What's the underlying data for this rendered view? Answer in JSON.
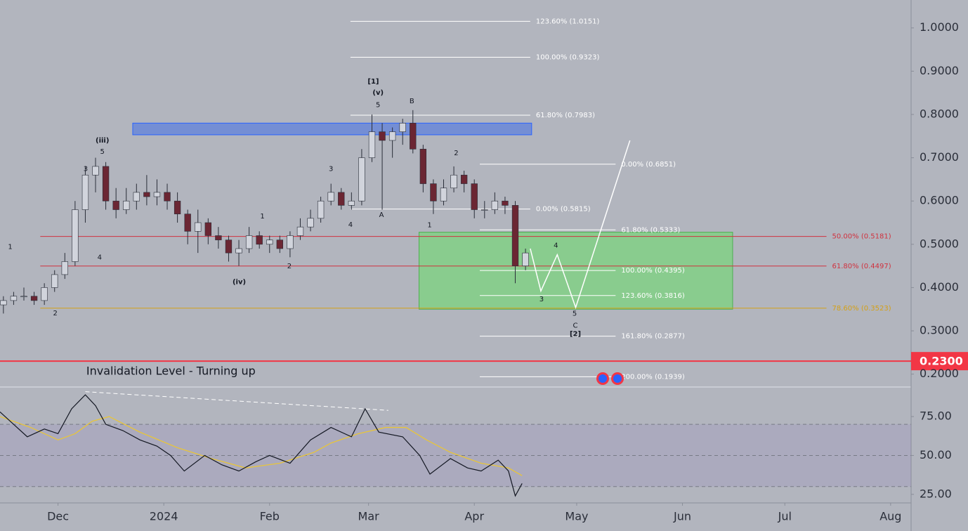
{
  "chart_data": {
    "type": "candlestick",
    "x": [
      -16,
      -13,
      -10,
      -7,
      -4,
      -1,
      2,
      5,
      8,
      11,
      14,
      17,
      20,
      23,
      26,
      29,
      32,
      35,
      38,
      41,
      44,
      47,
      50,
      53,
      56,
      59,
      62,
      65,
      68,
      71,
      74,
      77,
      80,
      83,
      86,
      89,
      92,
      95,
      98,
      101,
      104,
      107,
      110,
      113,
      116,
      119,
      122,
      125,
      128,
      131,
      134,
      137
    ],
    "open": [
      0.36,
      0.37,
      0.38,
      0.38,
      0.37,
      0.4,
      0.43,
      0.46,
      0.58,
      0.66,
      0.68,
      0.6,
      0.58,
      0.6,
      0.62,
      0.61,
      0.62,
      0.6,
      0.57,
      0.53,
      0.55,
      0.52,
      0.51,
      0.48,
      0.49,
      0.52,
      0.5,
      0.51,
      0.49,
      0.52,
      0.54,
      0.56,
      0.6,
      0.62,
      0.59,
      0.6,
      0.7,
      0.76,
      0.74,
      0.76,
      0.78,
      0.72,
      0.64,
      0.6,
      0.63,
      0.66,
      0.64,
      0.58,
      0.58,
      0.6,
      0.59,
      0.45
    ],
    "high": [
      0.38,
      0.39,
      0.4,
      0.39,
      0.41,
      0.44,
      0.48,
      0.6,
      0.68,
      0.7,
      0.69,
      0.63,
      0.63,
      0.64,
      0.66,
      0.65,
      0.64,
      0.62,
      0.58,
      0.58,
      0.56,
      0.54,
      0.52,
      0.51,
      0.54,
      0.53,
      0.52,
      0.52,
      0.53,
      0.56,
      0.58,
      0.61,
      0.64,
      0.63,
      0.62,
      0.72,
      0.8,
      0.78,
      0.77,
      0.79,
      0.81,
      0.73,
      0.65,
      0.65,
      0.68,
      0.67,
      0.65,
      0.6,
      0.62,
      0.61,
      0.6,
      0.49
    ],
    "low": [
      0.34,
      0.36,
      0.37,
      0.36,
      0.36,
      0.39,
      0.42,
      0.45,
      0.55,
      0.62,
      0.58,
      0.56,
      0.57,
      0.58,
      0.59,
      0.59,
      0.58,
      0.55,
      0.5,
      0.48,
      0.5,
      0.49,
      0.46,
      0.45,
      0.48,
      0.49,
      0.48,
      0.48,
      0.47,
      0.51,
      0.53,
      0.55,
      0.59,
      0.58,
      0.58,
      0.59,
      0.69,
      0.58,
      0.7,
      0.73,
      0.71,
      0.62,
      0.57,
      0.59,
      0.62,
      0.62,
      0.56,
      0.56,
      0.57,
      0.57,
      0.41,
      0.44
    ],
    "close": [
      0.37,
      0.38,
      0.38,
      0.37,
      0.4,
      0.43,
      0.46,
      0.58,
      0.66,
      0.68,
      0.6,
      0.58,
      0.6,
      0.62,
      0.61,
      0.62,
      0.6,
      0.57,
      0.53,
      0.55,
      0.52,
      0.51,
      0.48,
      0.49,
      0.52,
      0.5,
      0.51,
      0.49,
      0.52,
      0.54,
      0.56,
      0.6,
      0.62,
      0.59,
      0.6,
      0.7,
      0.76,
      0.74,
      0.76,
      0.78,
      0.72,
      0.64,
      0.6,
      0.63,
      0.66,
      0.64,
      0.58,
      0.58,
      0.6,
      0.59,
      0.45,
      0.48
    ],
    "up_color": "#d1d4dc",
    "down_color": "#6b2633",
    "ylim": [
      0.1702,
      1.0645
    ],
    "yticks": [
      {
        "value": 1,
        "label": "1.0000"
      },
      {
        "value": 0.9,
        "label": "0.9000"
      },
      {
        "value": 0.8,
        "label": "0.8000"
      },
      {
        "value": 0.7,
        "label": "0.7000"
      },
      {
        "value": 0.6,
        "label": "0.6000"
      },
      {
        "value": 0.5,
        "label": "0.5000"
      },
      {
        "value": 0.4,
        "label": "0.4000"
      },
      {
        "value": 0.3,
        "label": "0.3000"
      },
      {
        "value": 0.2,
        "label": "0.2000"
      }
    ],
    "xlim": [
      -17,
      250
    ],
    "xticks": [
      {
        "value": 0,
        "label": "Dec"
      },
      {
        "value": 31,
        "label": "2024"
      },
      {
        "value": 62,
        "label": "Feb"
      },
      {
        "value": 91,
        "label": "Mar"
      },
      {
        "value": 122,
        "label": "Apr"
      },
      {
        "value": 152,
        "label": "May"
      },
      {
        "value": 183,
        "label": "Jun"
      },
      {
        "value": 213,
        "label": "Jul"
      },
      {
        "value": 244,
        "label": "Aug"
      }
    ],
    "invalidation": {
      "value": 0.23,
      "label": "0.2300",
      "text": "Invalidation Level - Turning up",
      "color": "#f23645"
    },
    "zones": [
      {
        "y": [
          0.753,
          0.78
        ],
        "x": [
          21.9,
          138.8
        ],
        "color": "rgba(66,110,230,0.55)",
        "edge": "#2962ff"
      },
      {
        "y": [
          0.35,
          0.5279
        ],
        "x": [
          105.8,
          197.7
        ],
        "color": "rgba(110,220,110,0.6)",
        "edge": "#4caf50"
      }
    ],
    "levels": [
      {
        "value": 1.0151,
        "label": "123.60% (1.0151)",
        "x": [
          85.7,
          138.4
        ],
        "color": "#ffffff"
      },
      {
        "value": 0.9323,
        "label": "100.00% (0.9323)",
        "x": [
          85.7,
          138.4
        ],
        "color": "#ffffff"
      },
      {
        "value": 0.7983,
        "label": "61.80% (0.7983)",
        "x": [
          85.7,
          138.4
        ],
        "color": "#ffffff"
      },
      {
        "value": 0.5815,
        "label": "0.00% (0.5815)",
        "x": [
          85.7,
          138.4
        ],
        "color": "#ffffff"
      },
      {
        "value": 0.6851,
        "label": "0.00% (0.6851)",
        "x": [
          123.6,
          163.4
        ],
        "color": "#ffffff"
      },
      {
        "value": 0.5333,
        "label": "61.80% (0.5333)",
        "x": [
          123.6,
          163.4
        ],
        "color": "#ffffff"
      },
      {
        "value": 0.4395,
        "label": "100.00% (0.4395)",
        "x": [
          123.6,
          163.4
        ],
        "color": "#ffffff"
      },
      {
        "value": 0.3816,
        "label": "123.60% (0.3816)",
        "x": [
          123.6,
          163.4
        ],
        "color": "#ffffff"
      },
      {
        "value": 0.2877,
        "label": "161.80% (0.2877)",
        "x": [
          123.6,
          163.4
        ],
        "color": "#ffffff"
      },
      {
        "value": 0.1939,
        "label": "200.00% (0.1939)",
        "x": [
          123.6,
          163.4
        ],
        "color": "#ffffff"
      },
      {
        "value": 0.5181,
        "label": "50.00% (0.5181)",
        "x": [
          -5.2,
          225.2
        ],
        "color": "#d0323f"
      },
      {
        "value": 0.4497,
        "label": "61.80% (0.4497)",
        "x": [
          -5.2,
          225.2
        ],
        "color": "#d0323f"
      },
      {
        "value": 0.3523,
        "label": "78.60% (0.3523)",
        "x": [
          -5.2,
          225.2
        ],
        "color": "#d4a017"
      }
    ],
    "projection": {
      "x": [
        138.4,
        141.5,
        146.3,
        151.7,
        167.6
      ],
      "y": [
        0.49,
        0.392,
        0.476,
        0.354,
        0.74
      ],
      "color": "#ffffff"
    },
    "waves": [
      {
        "text": "1",
        "x": -14,
        "y": 0.494
      },
      {
        "text": "2",
        "x": -0.8,
        "y": 0.341
      },
      {
        "text": "3",
        "x": 8.1,
        "y": 0.674
      },
      {
        "text": "5",
        "x": 13,
        "y": 0.714
      },
      {
        "text": "(iii)",
        "x": 13,
        "y": 0.74
      },
      {
        "text": "4",
        "x": 12.2,
        "y": 0.47
      },
      {
        "text": "1",
        "x": 59.9,
        "y": 0.565
      },
      {
        "text": "2",
        "x": 67.8,
        "y": 0.449
      },
      {
        "text": "(iv)",
        "x": 53.1,
        "y": 0.413
      },
      {
        "text": "3",
        "x": 80,
        "y": 0.674
      },
      {
        "text": "4",
        "x": 85.7,
        "y": 0.545
      },
      {
        "text": "5",
        "x": 93.8,
        "y": 0.822
      },
      {
        "text": "(v)",
        "x": 93.8,
        "y": 0.85
      },
      {
        "text": "[1]",
        "x": 92.4,
        "y": 0.876
      },
      {
        "text": "A",
        "x": 94.8,
        "y": 0.568
      },
      {
        "text": "B",
        "x": 103.7,
        "y": 0.831
      },
      {
        "text": "1",
        "x": 108.9,
        "y": 0.544
      },
      {
        "text": "2",
        "x": 116.7,
        "y": 0.711
      },
      {
        "text": "3",
        "x": 141.7,
        "y": 0.373
      },
      {
        "text": "4",
        "x": 145.9,
        "y": 0.497
      },
      {
        "text": "5",
        "x": 151.4,
        "y": 0.34
      },
      {
        "text": "C",
        "x": 151.6,
        "y": 0.312
      },
      {
        "text": "[2]",
        "x": 151.6,
        "y": 0.293
      }
    ],
    "rsi": {
      "ylim": [
        19.5,
        94
      ],
      "yticks": [
        {
          "value": 75,
          "label": "75.00"
        },
        {
          "value": 50,
          "label": "50.00"
        },
        {
          "value": 25,
          "label": "25.00"
        }
      ],
      "levels": [
        30,
        50,
        70
      ],
      "x": [
        -17,
        -13,
        -9,
        -4,
        0,
        4,
        8,
        11,
        14,
        19,
        24,
        29,
        33,
        37,
        43,
        48,
        53,
        58,
        62,
        68,
        74,
        80,
        86,
        90,
        94,
        101,
        106,
        109,
        115,
        120,
        124,
        129,
        132,
        134,
        136
      ],
      "values": [
        78,
        70,
        62,
        67,
        64,
        80,
        89,
        82,
        70,
        66,
        60,
        56,
        50,
        40,
        50,
        44,
        40,
        46,
        50,
        45,
        60,
        68,
        62,
        80,
        65,
        62,
        50,
        38,
        48,
        42,
        40,
        47,
        40,
        24,
        32
      ],
      "ma": {
        "x": [
          -17,
          -8,
          0,
          5,
          10,
          15,
          24,
          35,
          45,
          55,
          65,
          75,
          80,
          88,
          96,
          102,
          108,
          115,
          124,
          132,
          136
        ],
        "values": [
          75,
          68,
          60,
          64,
          72,
          75,
          65,
          55,
          48,
          42,
          45,
          52,
          58,
          64,
          68,
          68,
          60,
          52,
          45,
          42,
          37
        ],
        "color": "#e8c53a"
      },
      "color": "#131722",
      "divergence": {
        "x": [
          8,
          96.8
        ],
        "y": [
          91,
          79
        ]
      }
    }
  }
}
